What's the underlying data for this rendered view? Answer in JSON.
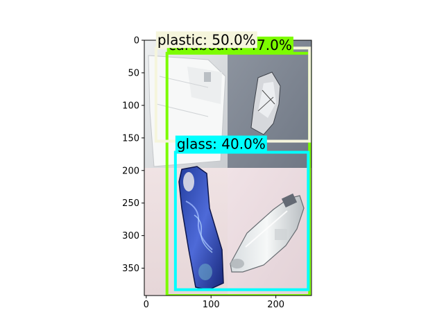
{
  "figure": {
    "x_axis": {
      "range": [
        -3,
        255
      ],
      "ticks": [
        0,
        100,
        200
      ]
    },
    "y_axis": {
      "range": [
        0,
        392
      ],
      "inverted": true,
      "ticks": [
        0,
        50,
        100,
        150,
        200,
        250,
        300,
        350
      ]
    }
  },
  "image": {
    "description_panels": [
      {
        "name": "top-left",
        "color": "#d7d9dc"
      },
      {
        "name": "top-right",
        "color": "#7f8793"
      },
      {
        "name": "bottom-left",
        "color": "#ebdedf"
      },
      {
        "name": "bottom-right",
        "color": "#ead9de"
      }
    ]
  },
  "detections": [
    {
      "label": "cardboard: 47.0%",
      "color": "#7cfc00",
      "box": {
        "x1": 32,
        "y1": 20,
        "x2": 252,
        "y2": 392
      }
    },
    {
      "label": "plastic: 50.0%",
      "color": "#f5f5dc",
      "box": {
        "x1": 15,
        "y1": 12,
        "x2": 252,
        "y2": 155
      }
    },
    {
      "label": "glass: 40.0%",
      "color": "#00ffff",
      "box": {
        "x1": 45,
        "y1": 172,
        "x2": 250,
        "y2": 383
      }
    }
  ]
}
